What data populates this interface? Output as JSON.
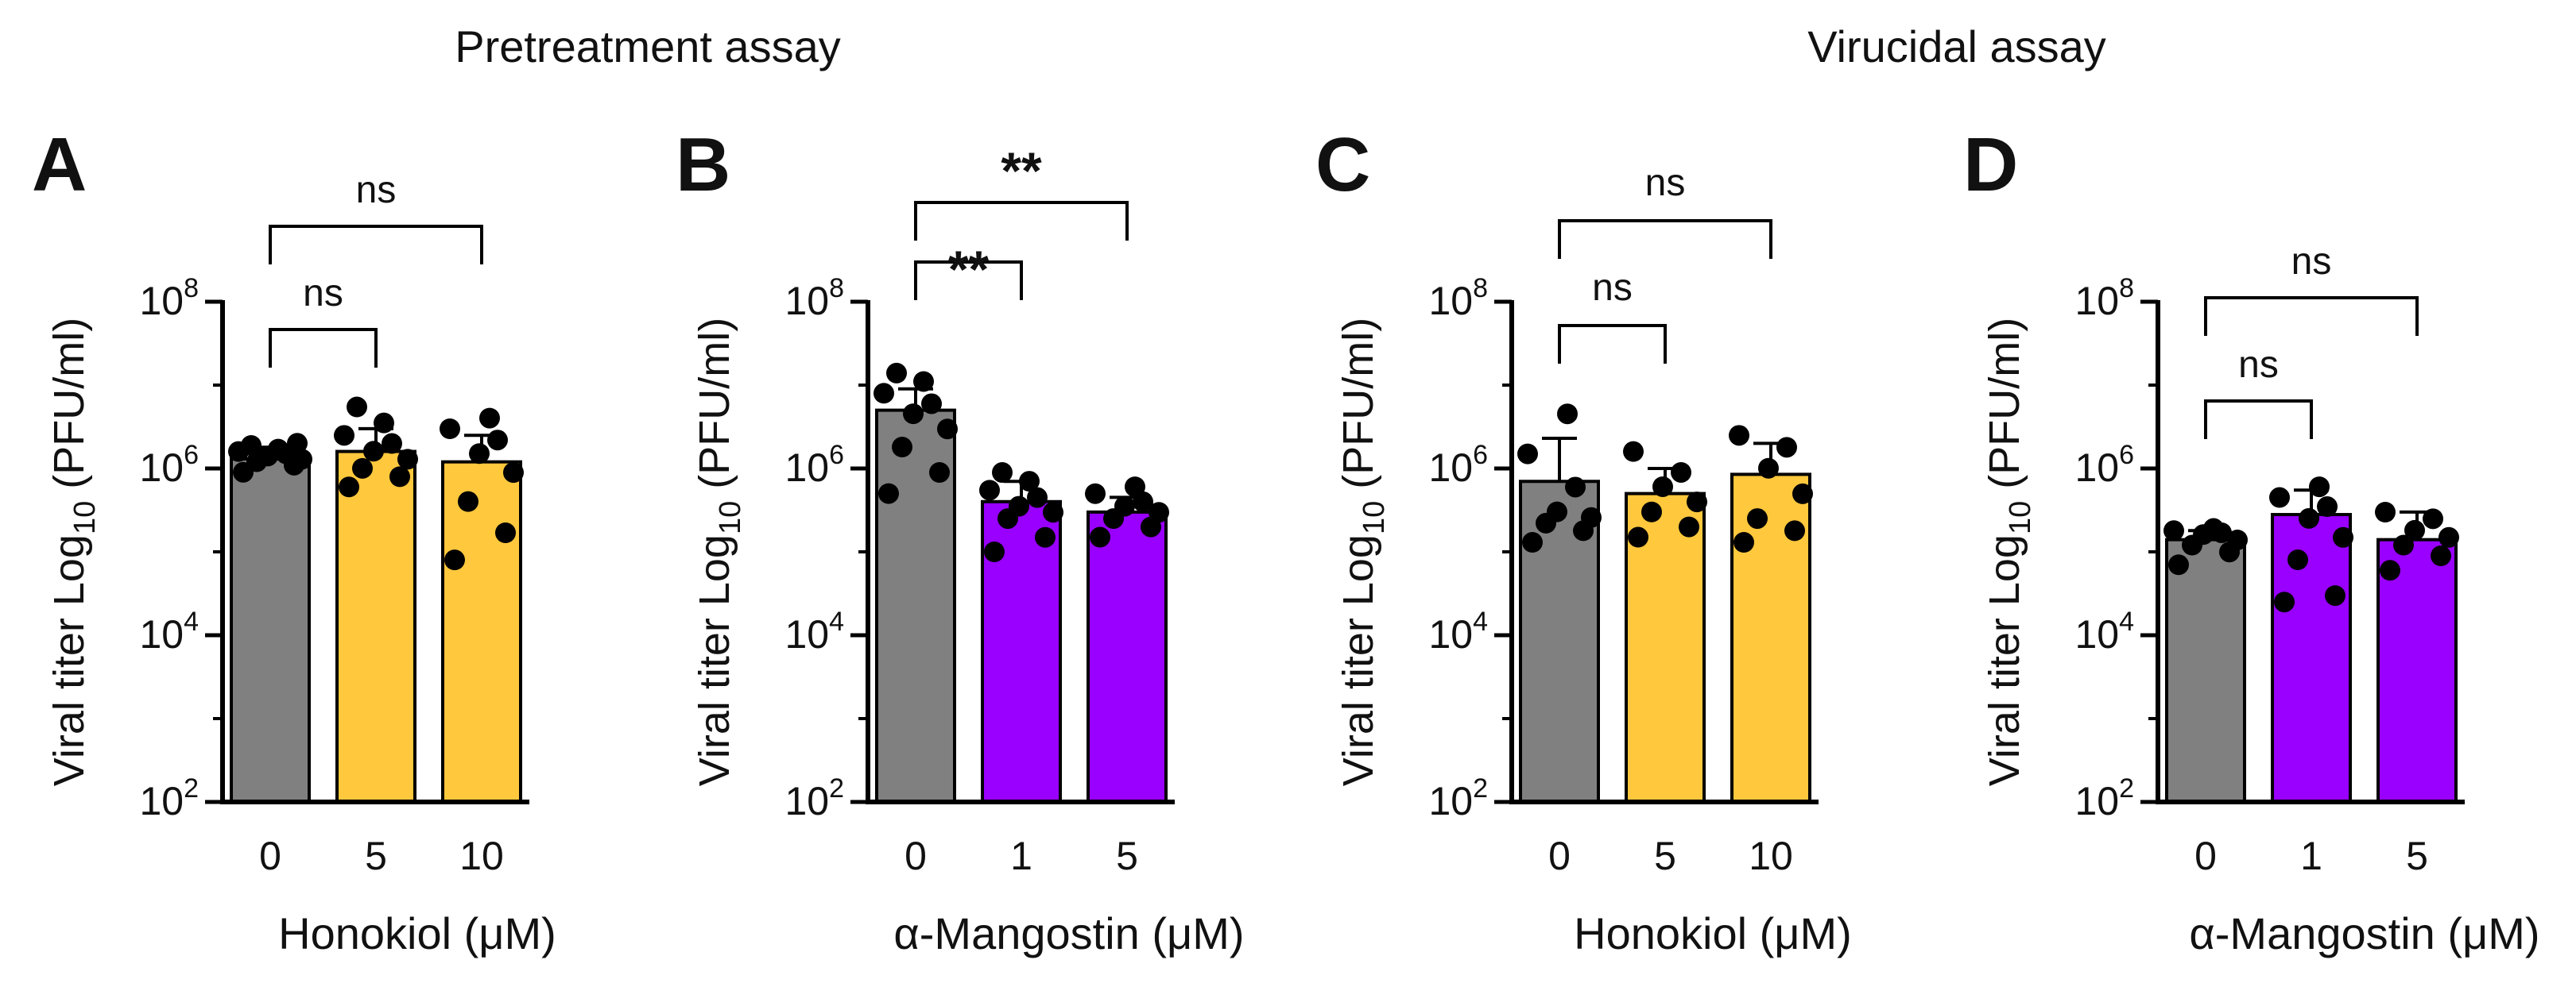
{
  "figure": {
    "group_titles": [
      "Pretreatment assay",
      "Virucidal assay"
    ]
  },
  "chart_data": [
    {
      "type": "bar",
      "panel_letter": "A",
      "assay": "Pretreatment assay",
      "ylabel": "Viral titer Log10 (PFU/ml)",
      "xlabel": "Honokiol (μM)",
      "y_scale": "log",
      "ylim": [
        100,
        100000000
      ],
      "yticks": [
        {
          "value": 100,
          "exp": "2"
        },
        {
          "value": 10000,
          "exp": "4"
        },
        {
          "value": 1000000,
          "exp": "6"
        },
        {
          "value": 100000000,
          "exp": "8"
        }
      ],
      "categories": [
        "0",
        "5",
        "10"
      ],
      "values": [
        1300000,
        1600000,
        1200000
      ],
      "error_upper": [
        1800000,
        3000000,
        2500000
      ],
      "bar_colors": [
        "#808080",
        "#FFC83D",
        "#FFC83D"
      ],
      "points": [
        [
          900000,
          1100000,
          1200000,
          1300000,
          1400000,
          1500000,
          1600000,
          1700000,
          1900000,
          2000000
        ],
        [
          600000,
          800000,
          1000000,
          1300000,
          1600000,
          2000000,
          2500000,
          3500000,
          5500000
        ],
        [
          80000,
          170000,
          400000,
          900000,
          1500000,
          2200000,
          3000000,
          4000000
        ]
      ],
      "comparisons": [
        {
          "from": 0,
          "to": 1,
          "label": "ns",
          "bold": false
        },
        {
          "from": 0,
          "to": 2,
          "label": "ns",
          "bold": false
        }
      ]
    },
    {
      "type": "bar",
      "panel_letter": "B",
      "assay": "Pretreatment assay",
      "ylabel": "Viral titer Log10 (PFU/ml)",
      "xlabel": "α-Mangostin (μM)",
      "y_scale": "log",
      "ylim": [
        100,
        100000000
      ],
      "yticks": [
        {
          "value": 100,
          "exp": "2"
        },
        {
          "value": 10000,
          "exp": "4"
        },
        {
          "value": 1000000,
          "exp": "6"
        },
        {
          "value": 100000000,
          "exp": "8"
        }
      ],
      "categories": [
        "0",
        "1",
        "5"
      ],
      "values": [
        5000000,
        400000,
        300000
      ],
      "error_upper": [
        9000000,
        700000,
        450000
      ],
      "bar_colors": [
        "#808080",
        "#9900FF",
        "#9900FF"
      ],
      "points": [
        [
          500000,
          900000,
          1800000,
          3000000,
          4500000,
          6000000,
          8000000,
          11000000,
          14000000
        ],
        [
          100000,
          150000,
          250000,
          300000,
          350000,
          450000,
          550000,
          700000,
          900000
        ],
        [
          150000,
          200000,
          250000,
          300000,
          350000,
          400000,
          500000,
          600000
        ]
      ],
      "comparisons": [
        {
          "from": 0,
          "to": 1,
          "label": "**",
          "bold": true
        },
        {
          "from": 0,
          "to": 2,
          "label": "**",
          "bold": true
        }
      ]
    },
    {
      "type": "bar",
      "panel_letter": "C",
      "assay": "Virucidal assay",
      "ylabel": "Viral titer Log10 (PFU/ml)",
      "xlabel": "Honokiol (μM)",
      "y_scale": "log",
      "ylim": [
        100,
        100000000
      ],
      "yticks": [
        {
          "value": 100,
          "exp": "2"
        },
        {
          "value": 10000,
          "exp": "4"
        },
        {
          "value": 1000000,
          "exp": "6"
        },
        {
          "value": 100000000,
          "exp": "8"
        }
      ],
      "categories": [
        "0",
        "5",
        "10"
      ],
      "values": [
        700000,
        500000,
        850000
      ],
      "error_upper": [
        2300000,
        1000000,
        2000000
      ],
      "bar_colors": [
        "#808080",
        "#FFC83D",
        "#FFC83D"
      ],
      "points": [
        [
          130000,
          180000,
          220000,
          260000,
          300000,
          600000,
          1500000,
          4500000
        ],
        [
          150000,
          200000,
          300000,
          400000,
          600000,
          900000,
          1600000
        ],
        [
          130000,
          180000,
          250000,
          500000,
          1000000,
          1800000,
          2500000
        ]
      ],
      "comparisons": [
        {
          "from": 0,
          "to": 1,
          "label": "ns",
          "bold": false
        },
        {
          "from": 0,
          "to": 2,
          "label": "ns",
          "bold": false
        }
      ]
    },
    {
      "type": "bar",
      "panel_letter": "D",
      "assay": "Virucidal assay",
      "ylabel": "Viral titer Log10 (PFU/ml)",
      "xlabel": "α-Mangostin (μM)",
      "y_scale": "log",
      "ylim": [
        100,
        100000000
      ],
      "yticks": [
        {
          "value": 100,
          "exp": "2"
        },
        {
          "value": 10000,
          "exp": "4"
        },
        {
          "value": 1000000,
          "exp": "6"
        },
        {
          "value": 100000000,
          "exp": "8"
        }
      ],
      "categories": [
        "0",
        "1",
        "5"
      ],
      "values": [
        140000,
        280000,
        140000
      ],
      "error_upper": [
        180000,
        550000,
        300000
      ],
      "bar_colors": [
        "#808080",
        "#9900FF",
        "#9900FF"
      ],
      "points": [
        [
          70000,
          100000,
          120000,
          140000,
          160000,
          170000,
          180000,
          190000
        ],
        [
          25000,
          30000,
          80000,
          150000,
          250000,
          350000,
          450000,
          600000
        ],
        [
          60000,
          90000,
          120000,
          150000,
          180000,
          250000,
          300000
        ]
      ],
      "comparisons": [
        {
          "from": 0,
          "to": 1,
          "label": "ns",
          "bold": false
        },
        {
          "from": 0,
          "to": 2,
          "label": "ns",
          "bold": false
        }
      ]
    }
  ]
}
